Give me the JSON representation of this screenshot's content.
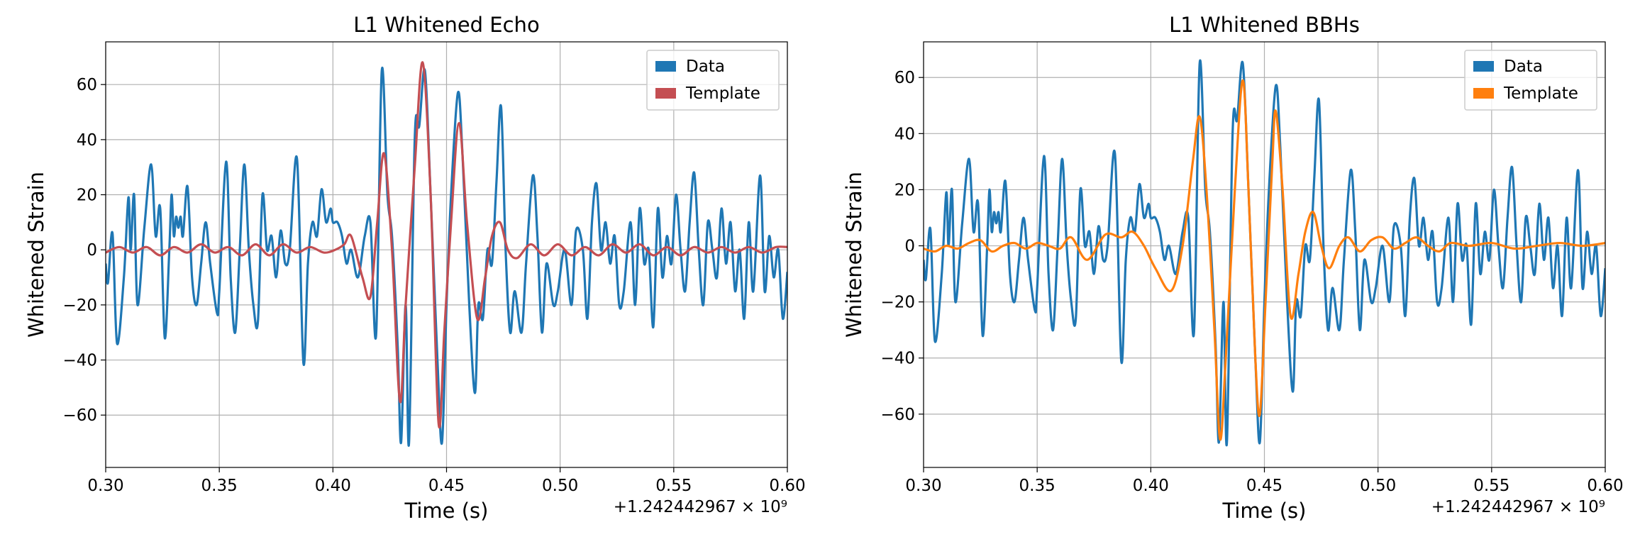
{
  "chart_data": [
    {
      "type": "line",
      "title": "L1 Whitened Echo",
      "xlabel": "Time (s)",
      "ylabel": "Whitened Strain",
      "x_offset_label": "+1.242442967 × 10⁹",
      "xlim": [
        0.3,
        0.6
      ],
      "ylim": [
        -79,
        75.5
      ],
      "xticks": [
        {
          "value": 0.3,
          "label": "0.30"
        },
        {
          "value": 0.35,
          "label": "0.35"
        },
        {
          "value": 0.4,
          "label": "0.40"
        },
        {
          "value": 0.45,
          "label": "0.45"
        },
        {
          "value": 0.5,
          "label": "0.50"
        },
        {
          "value": 0.55,
          "label": "0.55"
        },
        {
          "value": 0.6,
          "label": "0.60"
        }
      ],
      "yticks": [
        {
          "value": -60,
          "label": "−60"
        },
        {
          "value": -40,
          "label": "−40"
        },
        {
          "value": -20,
          "label": "−20"
        },
        0,
        20,
        40,
        60
      ],
      "grid": true,
      "legend": "upper right",
      "series": [
        {
          "name": "Data",
          "color": "#1f77b4",
          "x": [
            0.3,
            0.301,
            0.303,
            0.305,
            0.308,
            0.31,
            0.311,
            0.3125,
            0.314,
            0.317,
            0.32,
            0.322,
            0.324,
            0.326,
            0.328,
            0.329,
            0.33,
            0.331,
            0.332,
            0.333,
            0.334,
            0.336,
            0.338,
            0.34,
            0.342,
            0.344,
            0.346,
            0.349,
            0.35,
            0.353,
            0.355,
            0.357,
            0.359,
            0.361,
            0.363,
            0.365,
            0.367,
            0.369,
            0.371,
            0.373,
            0.375,
            0.377,
            0.379,
            0.381,
            0.3842,
            0.387,
            0.389,
            0.391,
            0.393,
            0.395,
            0.397,
            0.399,
            0.4,
            0.402,
            0.404,
            0.406,
            0.408,
            0.411,
            0.414,
            0.4165,
            0.419,
            0.4215,
            0.424,
            0.426,
            0.4285,
            0.43,
            0.432,
            0.4335,
            0.436,
            0.438,
            0.4405,
            0.443,
            0.446,
            0.448,
            0.45,
            0.452,
            0.455,
            0.457,
            0.46,
            0.4625,
            0.464,
            0.466,
            0.468,
            0.47,
            0.472,
            0.474,
            0.476,
            0.478,
            0.48,
            0.483,
            0.485,
            0.488,
            0.49,
            0.492,
            0.494,
            0.497,
            0.499,
            0.502,
            0.505,
            0.507,
            0.51,
            0.512,
            0.514,
            0.516,
            0.518,
            0.52,
            0.522,
            0.524,
            0.526,
            0.528,
            0.531,
            0.533,
            0.535,
            0.537,
            0.539,
            0.541,
            0.543,
            0.545,
            0.547,
            0.549,
            0.551,
            0.553,
            0.555,
            0.557,
            0.559,
            0.561,
            0.563,
            0.565,
            0.567,
            0.569,
            0.571,
            0.573,
            0.575,
            0.577,
            0.579,
            0.581,
            0.583,
            0.585,
            0.588,
            0.59,
            0.592,
            0.594,
            0.596,
            0.598,
            0.6
          ],
          "values": [
            -5,
            -12,
            6,
            -34,
            -10,
            19,
            0,
            20,
            -20,
            8,
            31,
            5,
            15,
            -32,
            0,
            20,
            5,
            12,
            8,
            12,
            5,
            23,
            -10,
            -20,
            -5,
            10,
            -5,
            -23,
            -15,
            32,
            -10,
            -30,
            0,
            31,
            0,
            -20,
            -26,
            20,
            0,
            5,
            -10,
            7,
            -5,
            0,
            33,
            -41,
            -5,
            10,
            5,
            22,
            10,
            15,
            10,
            10,
            5,
            -5,
            0,
            -10,
            5,
            10,
            -31,
            65,
            20,
            5,
            -35,
            -70,
            -20,
            -70,
            40,
            45,
            65,
            20,
            -40,
            -70,
            -20,
            20,
            57,
            35,
            -20,
            -52,
            -20,
            -25,
            0,
            -5,
            25,
            52,
            0,
            -30,
            -15,
            -30,
            -5,
            27,
            5,
            -30,
            -5,
            -20,
            -15,
            0,
            -20,
            7,
            0,
            -25,
            10,
            24,
            0,
            10,
            -5,
            5,
            -20,
            -15,
            10,
            -20,
            15,
            -5,
            0,
            -28,
            15,
            -10,
            5,
            -5,
            20,
            0,
            -15,
            10,
            28,
            0,
            -20,
            10,
            0,
            -10,
            15,
            -5,
            10,
            -15,
            0,
            -25,
            10,
            -15,
            27,
            -15,
            5,
            -10,
            0,
            -25,
            -8
          ]
        },
        {
          "name": "Template",
          "color": "#c44e52",
          "x": [
            0.3,
            0.306,
            0.312,
            0.318,
            0.324,
            0.33,
            0.336,
            0.342,
            0.348,
            0.354,
            0.36,
            0.366,
            0.372,
            0.378,
            0.384,
            0.39,
            0.396,
            0.401,
            0.405,
            0.408,
            0.413,
            0.4165,
            0.4195,
            0.4225,
            0.426,
            0.4295,
            0.432,
            0.436,
            0.4395,
            0.443,
            0.4465,
            0.449,
            0.452,
            0.4555,
            0.459,
            0.4635,
            0.467,
            0.47,
            0.4735,
            0.477,
            0.481,
            0.487,
            0.493,
            0.499,
            0.505,
            0.511,
            0.517,
            0.523,
            0.529,
            0.535,
            0.541,
            0.547,
            0.553,
            0.559,
            0.565,
            0.571,
            0.577,
            0.583,
            0.589,
            0.595,
            0.6
          ],
          "values": [
            -1,
            1,
            -1,
            1,
            -2,
            1,
            -1,
            2,
            -1,
            1,
            -2,
            2,
            -2,
            2,
            -1,
            1,
            -1,
            0,
            2,
            5,
            -10,
            -17,
            10,
            35,
            0,
            -55,
            -20,
            30,
            68,
            20,
            -63,
            -30,
            10,
            46,
            10,
            -25,
            -10,
            5,
            10,
            0,
            -3,
            2,
            -2,
            2,
            -2,
            1,
            -2,
            2,
            -1,
            2,
            -2,
            1,
            -2,
            1,
            -1,
            1,
            -1,
            1,
            -1,
            1,
            1
          ]
        }
      ]
    },
    {
      "type": "line",
      "title": "L1 Whitened BBHs",
      "xlabel": "Time (s)",
      "ylabel": "Whitened Strain",
      "x_offset_label": "+1.242442967 × 10⁹",
      "xlim": [
        0.3,
        0.6
      ],
      "ylim": [
        -79,
        72.7
      ],
      "xticks": [
        {
          "value": 0.3,
          "label": "0.30"
        },
        {
          "value": 0.35,
          "label": "0.35"
        },
        {
          "value": 0.4,
          "label": "0.40"
        },
        {
          "value": 0.45,
          "label": "0.45"
        },
        {
          "value": 0.5,
          "label": "0.50"
        },
        {
          "value": 0.55,
          "label": "0.55"
        },
        {
          "value": 0.6,
          "label": "0.60"
        }
      ],
      "yticks": [
        {
          "value": -60,
          "label": "−60"
        },
        {
          "value": -40,
          "label": "−40"
        },
        {
          "value": -20,
          "label": "−20"
        },
        0,
        20,
        40,
        60
      ],
      "grid": true,
      "legend": "upper right",
      "series": [
        {
          "name": "Data",
          "color": "#1f77b4",
          "x": [
            0.3,
            0.301,
            0.303,
            0.305,
            0.308,
            0.31,
            0.311,
            0.3125,
            0.314,
            0.317,
            0.32,
            0.322,
            0.324,
            0.326,
            0.328,
            0.329,
            0.33,
            0.331,
            0.332,
            0.333,
            0.334,
            0.336,
            0.338,
            0.34,
            0.342,
            0.344,
            0.346,
            0.349,
            0.35,
            0.353,
            0.355,
            0.357,
            0.359,
            0.361,
            0.363,
            0.365,
            0.367,
            0.369,
            0.371,
            0.373,
            0.375,
            0.377,
            0.379,
            0.381,
            0.3842,
            0.387,
            0.389,
            0.391,
            0.393,
            0.395,
            0.397,
            0.399,
            0.4,
            0.402,
            0.404,
            0.406,
            0.408,
            0.411,
            0.414,
            0.4165,
            0.419,
            0.4215,
            0.424,
            0.426,
            0.4285,
            0.43,
            0.432,
            0.4335,
            0.436,
            0.438,
            0.4405,
            0.443,
            0.446,
            0.448,
            0.45,
            0.452,
            0.455,
            0.457,
            0.46,
            0.4625,
            0.464,
            0.466,
            0.468,
            0.47,
            0.472,
            0.474,
            0.476,
            0.478,
            0.48,
            0.483,
            0.485,
            0.488,
            0.49,
            0.492,
            0.494,
            0.497,
            0.499,
            0.502,
            0.505,
            0.507,
            0.51,
            0.512,
            0.514,
            0.516,
            0.518,
            0.52,
            0.522,
            0.524,
            0.526,
            0.528,
            0.531,
            0.533,
            0.535,
            0.537,
            0.539,
            0.541,
            0.543,
            0.545,
            0.547,
            0.549,
            0.551,
            0.553,
            0.555,
            0.557,
            0.559,
            0.561,
            0.563,
            0.565,
            0.567,
            0.569,
            0.571,
            0.573,
            0.575,
            0.577,
            0.579,
            0.581,
            0.583,
            0.585,
            0.588,
            0.59,
            0.592,
            0.594,
            0.596,
            0.598,
            0.6
          ],
          "values": [
            -5,
            -12,
            6,
            -34,
            -10,
            19,
            0,
            20,
            -20,
            8,
            31,
            5,
            15,
            -32,
            0,
            20,
            5,
            12,
            8,
            12,
            5,
            23,
            -10,
            -20,
            -5,
            10,
            -5,
            -23,
            -15,
            32,
            -10,
            -30,
            0,
            31,
            0,
            -20,
            -26,
            20,
            0,
            5,
            -10,
            7,
            -5,
            0,
            33,
            -41,
            -5,
            10,
            5,
            22,
            10,
            15,
            10,
            10,
            5,
            -5,
            0,
            -10,
            5,
            10,
            -31,
            65,
            20,
            5,
            -35,
            -70,
            -20,
            -70,
            40,
            45,
            65,
            20,
            -40,
            -70,
            -20,
            20,
            57,
            35,
            -20,
            -52,
            -20,
            -25,
            0,
            -5,
            25,
            52,
            0,
            -30,
            -15,
            -30,
            -5,
            27,
            5,
            -30,
            -5,
            -20,
            -15,
            0,
            -20,
            7,
            0,
            -25,
            10,
            24,
            0,
            10,
            -5,
            5,
            -20,
            -15,
            10,
            -20,
            15,
            -5,
            0,
            -28,
            15,
            -10,
            5,
            -5,
            20,
            0,
            -15,
            10,
            28,
            0,
            -20,
            10,
            0,
            -10,
            15,
            -5,
            10,
            -15,
            0,
            -25,
            10,
            -15,
            27,
            -15,
            5,
            -10,
            0,
            -25,
            -8
          ]
        },
        {
          "name": "Template",
          "color": "#ff7f0e",
          "x": [
            0.3,
            0.305,
            0.31,
            0.315,
            0.32,
            0.325,
            0.33,
            0.335,
            0.34,
            0.345,
            0.35,
            0.355,
            0.36,
            0.365,
            0.372,
            0.38,
            0.387,
            0.392,
            0.397,
            0.402,
            0.409,
            0.414,
            0.4185,
            0.4215,
            0.4245,
            0.428,
            0.4305,
            0.433,
            0.437,
            0.4405,
            0.443,
            0.446,
            0.448,
            0.4505,
            0.4535,
            0.455,
            0.458,
            0.4615,
            0.465,
            0.468,
            0.4715,
            0.475,
            0.4785,
            0.483,
            0.487,
            0.492,
            0.497,
            0.502,
            0.507,
            0.512,
            0.517,
            0.522,
            0.527,
            0.532,
            0.54,
            0.55,
            0.56,
            0.57,
            0.58,
            0.59,
            0.6
          ],
          "values": [
            -1,
            -2,
            0,
            -1,
            1,
            2,
            -2,
            0,
            1,
            -1,
            1,
            0,
            -1,
            3,
            -5,
            4,
            3,
            5,
            0,
            -8,
            -16,
            0,
            30,
            46,
            20,
            -30,
            -69,
            -40,
            20,
            59,
            20,
            -40,
            -60,
            -20,
            30,
            48,
            20,
            -25,
            -10,
            5,
            12,
            0,
            -8,
            0,
            3,
            -2,
            2,
            3,
            -1,
            1,
            3,
            0,
            -2,
            1,
            0,
            1,
            -1,
            0,
            1,
            0,
            1
          ]
        }
      ]
    }
  ]
}
